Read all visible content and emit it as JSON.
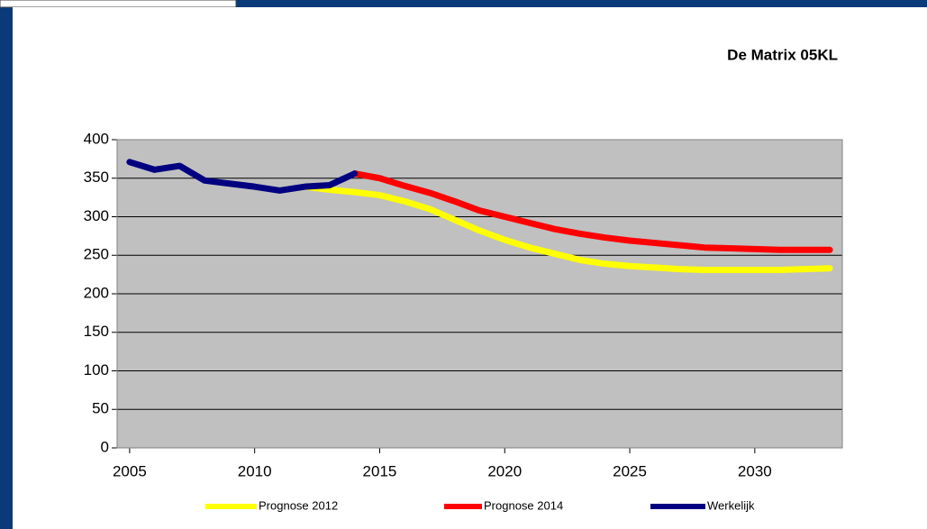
{
  "chart_data": {
    "type": "line",
    "title": "De Matrix 05KL",
    "x": [
      2005,
      2006,
      2007,
      2008,
      2009,
      2010,
      2011,
      2012,
      2013,
      2014,
      2015,
      2016,
      2017,
      2018,
      2019,
      2020,
      2021,
      2022,
      2023,
      2024,
      2025,
      2026,
      2027,
      2028,
      2029,
      2030,
      2031,
      2032,
      2033
    ],
    "series": [
      {
        "name": "Prognose 2012",
        "color": "#ffff00",
        "values": [
          null,
          null,
          null,
          null,
          null,
          null,
          null,
          339,
          335,
          332,
          328,
          320,
          310,
          296,
          282,
          270,
          260,
          252,
          244,
          239,
          236,
          234,
          232,
          231,
          231,
          231,
          231,
          232,
          233
        ]
      },
      {
        "name": "Prognose 2014",
        "color": "#ff0000",
        "values": [
          null,
          null,
          null,
          null,
          null,
          null,
          null,
          null,
          null,
          356,
          350,
          340,
          331,
          320,
          308,
          300,
          292,
          284,
          278,
          273,
          269,
          266,
          263,
          260,
          259,
          258,
          257,
          257,
          257
        ]
      },
      {
        "name": "Werkelijk",
        "color": "#000080",
        "values": [
          371,
          361,
          366,
          347,
          343,
          339,
          334,
          339,
          341,
          356,
          null,
          null,
          null,
          null,
          null,
          null,
          null,
          null,
          null,
          null,
          null,
          null,
          null,
          null,
          null,
          null,
          null,
          null,
          null
        ]
      }
    ],
    "xlim": [
      2004.5,
      2033.5
    ],
    "xticks": [
      2005,
      2010,
      2015,
      2020,
      2025,
      2030
    ],
    "ylim": [
      0,
      400
    ],
    "yticks": [
      0,
      50,
      100,
      150,
      200,
      250,
      300,
      350,
      400
    ],
    "grid": true,
    "legend": "bottom"
  }
}
